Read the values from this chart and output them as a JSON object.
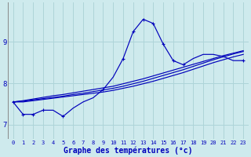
{
  "background_color": "#ceeaed",
  "grid_color": "#aed4d8",
  "line_color": "#0000bb",
  "xlabel": "Graphe des températures (°c)",
  "xlabel_fontsize": 7,
  "ylabel_ticks": [
    7,
    8,
    9
  ],
  "xlim": [
    -0.5,
    23.5
  ],
  "ylim": [
    6.65,
    9.95
  ],
  "xtick_labels": [
    "0",
    "1",
    "2",
    "3",
    "4",
    "5",
    "6",
    "7",
    "8",
    "9",
    "10",
    "11",
    "12",
    "13",
    "14",
    "15",
    "16",
    "17",
    "18",
    "19",
    "20",
    "21",
    "22",
    "23"
  ],
  "main_series": [
    7.55,
    7.25,
    7.25,
    7.35,
    7.35,
    7.2,
    7.4,
    7.55,
    7.65,
    7.85,
    8.15,
    8.6,
    9.25,
    9.55,
    9.45,
    8.95,
    8.55,
    8.45,
    8.6,
    8.7,
    8.7,
    8.65,
    8.55,
    8.55
  ],
  "trend1": [
    7.55,
    7.55,
    7.58,
    7.61,
    7.64,
    7.67,
    7.7,
    7.73,
    7.76,
    7.79,
    7.83,
    7.88,
    7.93,
    7.99,
    8.05,
    8.12,
    8.19,
    8.26,
    8.34,
    8.42,
    8.5,
    8.57,
    8.64,
    8.7
  ],
  "trend2": [
    7.55,
    7.57,
    7.6,
    7.63,
    7.66,
    7.69,
    7.73,
    7.76,
    7.8,
    7.84,
    7.88,
    7.93,
    7.99,
    8.05,
    8.12,
    8.19,
    8.26,
    8.33,
    8.41,
    8.49,
    8.57,
    8.64,
    8.71,
    8.77
  ],
  "trend3": [
    7.55,
    7.58,
    7.62,
    7.66,
    7.7,
    7.73,
    7.77,
    7.81,
    7.85,
    7.89,
    7.93,
    7.99,
    8.05,
    8.11,
    8.18,
    8.25,
    8.32,
    8.39,
    8.46,
    8.53,
    8.6,
    8.67,
    8.73,
    8.79
  ],
  "markers": [
    0,
    1,
    2,
    3,
    5,
    9,
    11,
    12,
    13,
    14,
    15,
    16,
    17,
    23
  ]
}
